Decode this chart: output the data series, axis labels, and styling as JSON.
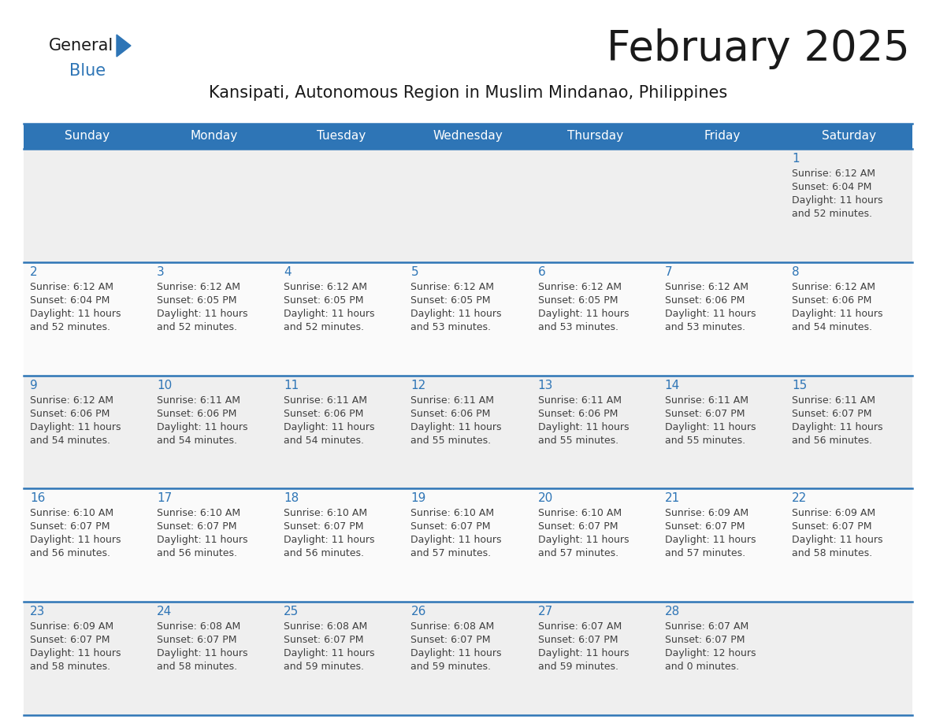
{
  "title": "February 2025",
  "subtitle": "Kansipati, Autonomous Region in Muslim Mindanao, Philippines",
  "header_bg": "#2E75B6",
  "header_text_color": "#FFFFFF",
  "row_bg_odd": "#EFEFEF",
  "row_bg_even": "#FAFAFA",
  "day_number_color": "#2E75B6",
  "text_color": "#404040",
  "border_color": "#2E75B6",
  "days_of_week": [
    "Sunday",
    "Monday",
    "Tuesday",
    "Wednesday",
    "Thursday",
    "Friday",
    "Saturday"
  ],
  "calendar_data": [
    [
      null,
      null,
      null,
      null,
      null,
      null,
      {
        "day": "1",
        "sunrise": "6:12 AM",
        "sunset": "6:04 PM",
        "daylight_line1": "Daylight: 11 hours",
        "daylight_line2": "and 52 minutes."
      }
    ],
    [
      {
        "day": "2",
        "sunrise": "6:12 AM",
        "sunset": "6:04 PM",
        "daylight_line1": "Daylight: 11 hours",
        "daylight_line2": "and 52 minutes."
      },
      {
        "day": "3",
        "sunrise": "6:12 AM",
        "sunset": "6:05 PM",
        "daylight_line1": "Daylight: 11 hours",
        "daylight_line2": "and 52 minutes."
      },
      {
        "day": "4",
        "sunrise": "6:12 AM",
        "sunset": "6:05 PM",
        "daylight_line1": "Daylight: 11 hours",
        "daylight_line2": "and 52 minutes."
      },
      {
        "day": "5",
        "sunrise": "6:12 AM",
        "sunset": "6:05 PM",
        "daylight_line1": "Daylight: 11 hours",
        "daylight_line2": "and 53 minutes."
      },
      {
        "day": "6",
        "sunrise": "6:12 AM",
        "sunset": "6:05 PM",
        "daylight_line1": "Daylight: 11 hours",
        "daylight_line2": "and 53 minutes."
      },
      {
        "day": "7",
        "sunrise": "6:12 AM",
        "sunset": "6:06 PM",
        "daylight_line1": "Daylight: 11 hours",
        "daylight_line2": "and 53 minutes."
      },
      {
        "day": "8",
        "sunrise": "6:12 AM",
        "sunset": "6:06 PM",
        "daylight_line1": "Daylight: 11 hours",
        "daylight_line2": "and 54 minutes."
      }
    ],
    [
      {
        "day": "9",
        "sunrise": "6:12 AM",
        "sunset": "6:06 PM",
        "daylight_line1": "Daylight: 11 hours",
        "daylight_line2": "and 54 minutes."
      },
      {
        "day": "10",
        "sunrise": "6:11 AM",
        "sunset": "6:06 PM",
        "daylight_line1": "Daylight: 11 hours",
        "daylight_line2": "and 54 minutes."
      },
      {
        "day": "11",
        "sunrise": "6:11 AM",
        "sunset": "6:06 PM",
        "daylight_line1": "Daylight: 11 hours",
        "daylight_line2": "and 54 minutes."
      },
      {
        "day": "12",
        "sunrise": "6:11 AM",
        "sunset": "6:06 PM",
        "daylight_line1": "Daylight: 11 hours",
        "daylight_line2": "and 55 minutes."
      },
      {
        "day": "13",
        "sunrise": "6:11 AM",
        "sunset": "6:06 PM",
        "daylight_line1": "Daylight: 11 hours",
        "daylight_line2": "and 55 minutes."
      },
      {
        "day": "14",
        "sunrise": "6:11 AM",
        "sunset": "6:07 PM",
        "daylight_line1": "Daylight: 11 hours",
        "daylight_line2": "and 55 minutes."
      },
      {
        "day": "15",
        "sunrise": "6:11 AM",
        "sunset": "6:07 PM",
        "daylight_line1": "Daylight: 11 hours",
        "daylight_line2": "and 56 minutes."
      }
    ],
    [
      {
        "day": "16",
        "sunrise": "6:10 AM",
        "sunset": "6:07 PM",
        "daylight_line1": "Daylight: 11 hours",
        "daylight_line2": "and 56 minutes."
      },
      {
        "day": "17",
        "sunrise": "6:10 AM",
        "sunset": "6:07 PM",
        "daylight_line1": "Daylight: 11 hours",
        "daylight_line2": "and 56 minutes."
      },
      {
        "day": "18",
        "sunrise": "6:10 AM",
        "sunset": "6:07 PM",
        "daylight_line1": "Daylight: 11 hours",
        "daylight_line2": "and 56 minutes."
      },
      {
        "day": "19",
        "sunrise": "6:10 AM",
        "sunset": "6:07 PM",
        "daylight_line1": "Daylight: 11 hours",
        "daylight_line2": "and 57 minutes."
      },
      {
        "day": "20",
        "sunrise": "6:10 AM",
        "sunset": "6:07 PM",
        "daylight_line1": "Daylight: 11 hours",
        "daylight_line2": "and 57 minutes."
      },
      {
        "day": "21",
        "sunrise": "6:09 AM",
        "sunset": "6:07 PM",
        "daylight_line1": "Daylight: 11 hours",
        "daylight_line2": "and 57 minutes."
      },
      {
        "day": "22",
        "sunrise": "6:09 AM",
        "sunset": "6:07 PM",
        "daylight_line1": "Daylight: 11 hours",
        "daylight_line2": "and 58 minutes."
      }
    ],
    [
      {
        "day": "23",
        "sunrise": "6:09 AM",
        "sunset": "6:07 PM",
        "daylight_line1": "Daylight: 11 hours",
        "daylight_line2": "and 58 minutes."
      },
      {
        "day": "24",
        "sunrise": "6:08 AM",
        "sunset": "6:07 PM",
        "daylight_line1": "Daylight: 11 hours",
        "daylight_line2": "and 58 minutes."
      },
      {
        "day": "25",
        "sunrise": "6:08 AM",
        "sunset": "6:07 PM",
        "daylight_line1": "Daylight: 11 hours",
        "daylight_line2": "and 59 minutes."
      },
      {
        "day": "26",
        "sunrise": "6:08 AM",
        "sunset": "6:07 PM",
        "daylight_line1": "Daylight: 11 hours",
        "daylight_line2": "and 59 minutes."
      },
      {
        "day": "27",
        "sunrise": "6:07 AM",
        "sunset": "6:07 PM",
        "daylight_line1": "Daylight: 11 hours",
        "daylight_line2": "and 59 minutes."
      },
      {
        "day": "28",
        "sunrise": "6:07 AM",
        "sunset": "6:07 PM",
        "daylight_line1": "Daylight: 12 hours",
        "daylight_line2": "and 0 minutes."
      },
      null
    ]
  ],
  "logo_text_general": "General",
  "logo_text_blue": "Blue",
  "logo_color_general": "#1a1a1a",
  "logo_color_blue": "#2E75B6",
  "title_fontsize": 38,
  "subtitle_fontsize": 15,
  "header_fontsize": 11,
  "day_num_fontsize": 11,
  "cell_text_fontsize": 9
}
